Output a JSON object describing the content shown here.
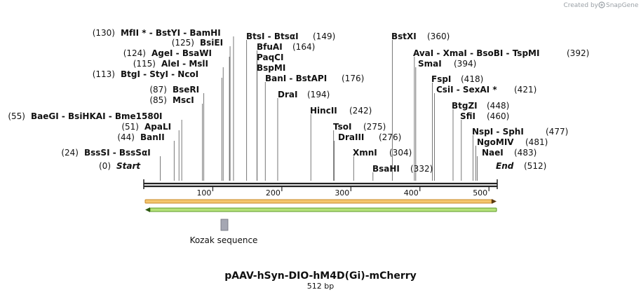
{
  "brand": {
    "credit": "Created by",
    "name": "SnapGene"
  },
  "map": {
    "title": "pAAV-hSyn-DIO-hM4D(Gi)-mCherry",
    "length_label": "512 bp",
    "length": 512,
    "ticks": [
      100,
      200,
      300,
      400,
      500
    ],
    "start": {
      "label": "Start",
      "pos": 0
    },
    "end": {
      "label": "End",
      "pos": 512
    },
    "feature_label": "Kozak sequence",
    "colors": {
      "fwd_fill": "#f5c66e",
      "fwd_stroke": "#c88a2a",
      "rev_fill": "#b6e27a",
      "rev_stroke": "#5e9b2a",
      "kozak": "#a5a7b3",
      "line": "#444444"
    }
  },
  "enzymes": [
    {
      "pos": 130,
      "pos_label": "(130)",
      "names": [
        "MfII *",
        " - BstYI",
        " - BamHI"
      ]
    },
    {
      "pos": 125,
      "pos_label": "(125)",
      "names": [
        "BsiEI"
      ]
    },
    {
      "pos": 124,
      "pos_label": "(124)",
      "names": [
        "AgeI",
        " - BsaWI"
      ]
    },
    {
      "pos": 115,
      "pos_label": "(115)",
      "names": [
        "AleI",
        " - MslI"
      ]
    },
    {
      "pos": 113,
      "pos_label": "(113)",
      "names": [
        "BtgI",
        " - StyI",
        " - NcoI"
      ]
    },
    {
      "pos": 87,
      "pos_label": "(87)",
      "names": [
        "BseRI"
      ]
    },
    {
      "pos": 85,
      "pos_label": "(85)",
      "names": [
        "MscI"
      ]
    },
    {
      "pos": 55,
      "pos_label": "(55)",
      "names": [
        "BaeGI",
        " - BsiHKAI",
        " - Bme1580I"
      ]
    },
    {
      "pos": 51,
      "pos_label": "(51)",
      "names": [
        "ApaLI"
      ]
    },
    {
      "pos": 44,
      "pos_label": "(44)",
      "names": [
        "BanII"
      ]
    },
    {
      "pos": 24,
      "pos_label": "(24)",
      "names": [
        "BssSI",
        " - BssSαI"
      ]
    },
    {
      "pos": 149,
      "pos_label": "(149)",
      "names": [
        "BtsI",
        " - BtsαI"
      ]
    },
    {
      "pos": 164,
      "pos_label": "(164)",
      "names": [
        "BfuAI"
      ]
    },
    {
      "pos": 164,
      "pos_label": "",
      "names": [
        "PaqCI"
      ]
    },
    {
      "pos": 164,
      "pos_label": "",
      "names": [
        "BspMI"
      ]
    },
    {
      "pos": 176,
      "pos_label": "(176)",
      "names": [
        "BanI",
        " - BstAPI"
      ]
    },
    {
      "pos": 194,
      "pos_label": "(194)",
      "names": [
        "DraI"
      ]
    },
    {
      "pos": 242,
      "pos_label": "(242)",
      "names": [
        "HincII"
      ]
    },
    {
      "pos": 275,
      "pos_label": "(275)",
      "names": [
        "TsoI"
      ]
    },
    {
      "pos": 276,
      "pos_label": "(276)",
      "names": [
        "DraIII"
      ]
    },
    {
      "pos": 304,
      "pos_label": "(304)",
      "names": [
        "XmnI"
      ]
    },
    {
      "pos": 332,
      "pos_label": "(332)",
      "names": [
        "BsaHI"
      ]
    },
    {
      "pos": 360,
      "pos_label": "(360)",
      "names": [
        "BstXI"
      ]
    },
    {
      "pos": 392,
      "pos_label": "(392)",
      "names": [
        "AvaI",
        " - XmaI",
        " - BsoBI",
        " - TspMI"
      ]
    },
    {
      "pos": 394,
      "pos_label": "(394)",
      "names": [
        "SmaI"
      ]
    },
    {
      "pos": 418,
      "pos_label": "(418)",
      "names": [
        "FspI"
      ]
    },
    {
      "pos": 421,
      "pos_label": "(421)",
      "names": [
        "CsiI",
        " - SexAI *"
      ]
    },
    {
      "pos": 448,
      "pos_label": "(448)",
      "names": [
        "BtgZI"
      ]
    },
    {
      "pos": 460,
      "pos_label": "(460)",
      "names": [
        "SfiI"
      ]
    },
    {
      "pos": 477,
      "pos_label": "(477)",
      "names": [
        "NspI",
        " - SphI"
      ]
    },
    {
      "pos": 481,
      "pos_label": "(481)",
      "names": [
        "NgoMIV"
      ]
    },
    {
      "pos": 483,
      "pos_label": "(483)",
      "names": [
        "NaeI"
      ]
    }
  ]
}
